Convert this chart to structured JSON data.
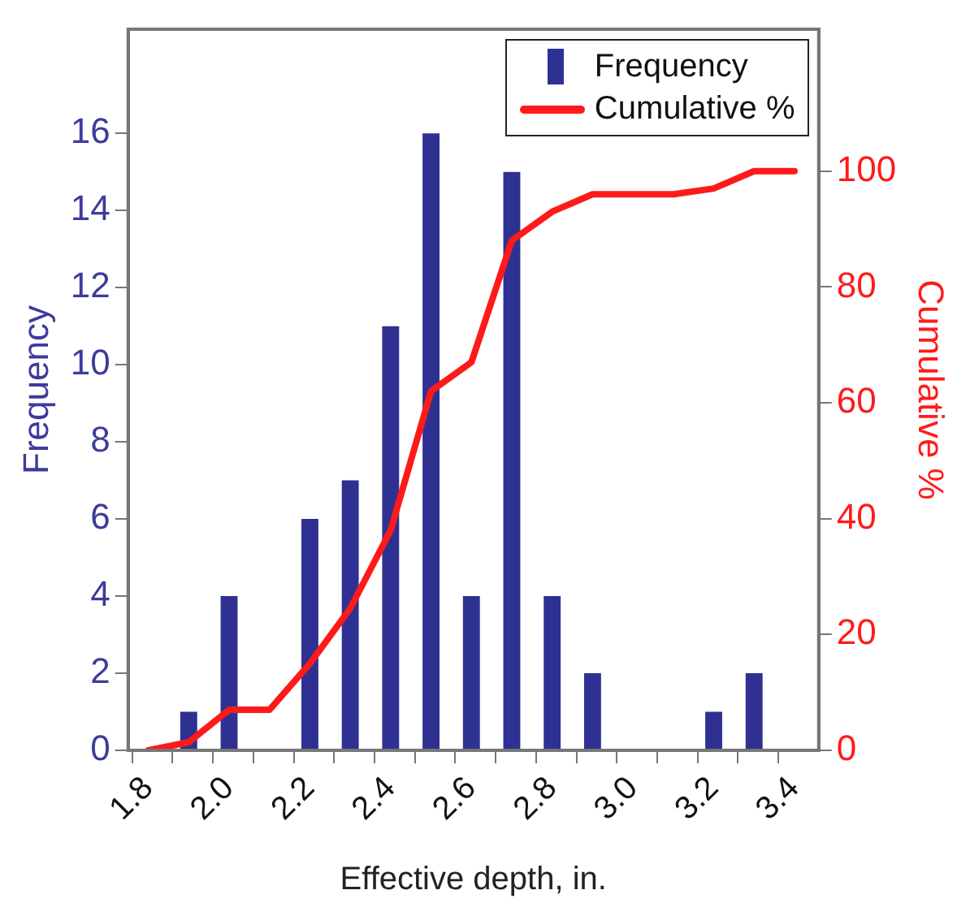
{
  "chart_data": {
    "type": "bar",
    "xlabel": "Effective depth, in.",
    "ylabel": "Frequency",
    "y2label": "Cumulative %",
    "xlim": [
      1.79,
      3.5
    ],
    "xticks": [
      1.8,
      {
        "value": 1.9,
        "label": null
      },
      "2.0",
      {
        "value": 2.1,
        "label": null
      },
      2.2,
      {
        "value": 2.3,
        "label": null
      },
      2.4,
      {
        "value": 2.5,
        "label": null
      },
      2.6,
      {
        "value": 2.7,
        "label": null
      },
      2.8,
      {
        "value": 2.9,
        "label": null
      },
      {
        "value": 3.0,
        "label": "3.0"
      },
      {
        "value": 3.1,
        "label": null
      },
      3.2,
      {
        "value": 3.3,
        "label": null
      },
      3.4
    ],
    "ylim": [
      0,
      18.7
    ],
    "yticks": [
      0,
      2,
      4,
      6,
      8,
      10,
      12,
      14,
      16
    ],
    "y2lim": [
      0,
      124.5
    ],
    "y2ticks": [
      0,
      20,
      40,
      60,
      80,
      100
    ],
    "series": [
      {
        "name": "Frequency",
        "color": "#2e3192",
        "x": [
          1.94,
          2.04,
          2.14,
          2.24,
          2.34,
          2.44,
          2.54,
          2.64,
          2.74,
          2.84,
          2.94,
          3.04,
          3.14,
          3.24,
          3.34
        ],
        "values": [
          1,
          4,
          0,
          6,
          7,
          11,
          16,
          4,
          15,
          4,
          2,
          0,
          0,
          1,
          2
        ]
      },
      {
        "name": "Cumulative %",
        "type": "line",
        "axis": "y2",
        "color": "#ff1a1a",
        "x": [
          1.84,
          1.94,
          2.04,
          2.14,
          2.24,
          2.34,
          2.44,
          2.54,
          2.64,
          2.74,
          2.84,
          2.94,
          3.04,
          3.14,
          3.24,
          3.34,
          3.44
        ],
        "values": [
          0,
          1.4,
          7,
          7,
          15,
          24.5,
          38,
          62,
          67,
          88,
          93,
          96,
          96,
          96,
          97,
          100,
          100
        ]
      }
    ],
    "legend": "top right",
    "grid": false,
    "marker": "none",
    "line_style": "solid"
  }
}
